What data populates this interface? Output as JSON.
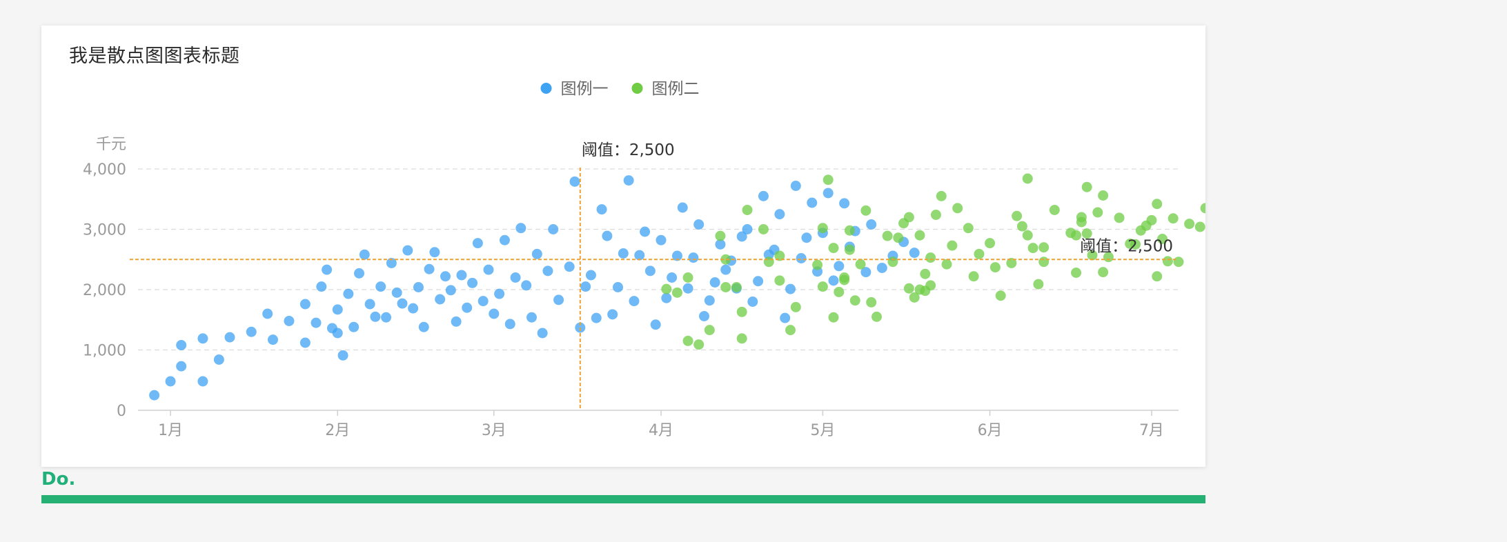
{
  "title": "我是散点图图表标题",
  "footer": {
    "text": "Do."
  },
  "chart_data": {
    "type": "scatter",
    "title": "我是散点图图表标题",
    "y_unit": "千元",
    "ylim": [
      0,
      4000
    ],
    "yticks": [
      0,
      1000,
      2000,
      3000,
      4000
    ],
    "ytick_labels": [
      "0",
      "1,000",
      "2,000",
      "3,000",
      "4,000"
    ],
    "x_type": "date",
    "xlim": [
      "2019-12-27",
      "2020-07-06"
    ],
    "xticks": [
      "2020-01-01",
      "2020-02-01",
      "2020-03-01",
      "2020-04-01",
      "2020-05-01",
      "2020-06-01",
      "2020-07-01"
    ],
    "xtick_labels": [
      "1月",
      "2月",
      "3月",
      "4月",
      "5月",
      "6月",
      "7月"
    ],
    "grid": "horizontal-dashed",
    "legend_position": "top-center",
    "threshold_lines": [
      {
        "orientation": "vertical",
        "value": "2020-03-17",
        "label": "阈值：2,500",
        "label_position": "top"
      },
      {
        "orientation": "horizontal",
        "value": 2500,
        "label": "阈值：2,500",
        "label_position": "right"
      }
    ],
    "series": [
      {
        "name": "图例一",
        "color": "#3fa3f3",
        "points": [
          [
            "2019-12-29",
            250
          ],
          [
            "2020-01-01",
            480
          ],
          [
            "2020-01-03",
            1080
          ],
          [
            "2020-01-03",
            730
          ],
          [
            "2020-01-07",
            1190
          ],
          [
            "2020-01-07",
            480
          ],
          [
            "2020-01-10",
            840
          ],
          [
            "2020-01-12",
            1210
          ],
          [
            "2020-01-16",
            1300
          ],
          [
            "2020-01-19",
            1600
          ],
          [
            "2020-01-20",
            1170
          ],
          [
            "2020-01-23",
            1480
          ],
          [
            "2020-01-26",
            1120
          ],
          [
            "2020-01-26",
            1760
          ],
          [
            "2020-01-28",
            1450
          ],
          [
            "2020-01-29",
            2050
          ],
          [
            "2020-01-30",
            2330
          ],
          [
            "2020-01-31",
            1360
          ],
          [
            "2020-02-01",
            1280
          ],
          [
            "2020-02-01",
            1670
          ],
          [
            "2020-02-02",
            910
          ],
          [
            "2020-02-03",
            1930
          ],
          [
            "2020-02-04",
            1380
          ],
          [
            "2020-02-05",
            2270
          ],
          [
            "2020-02-06",
            2580
          ],
          [
            "2020-02-07",
            1760
          ],
          [
            "2020-02-08",
            1550
          ],
          [
            "2020-02-09",
            2050
          ],
          [
            "2020-02-10",
            1540
          ],
          [
            "2020-02-11",
            2440
          ],
          [
            "2020-02-12",
            1950
          ],
          [
            "2020-02-13",
            1770
          ],
          [
            "2020-02-14",
            2650
          ],
          [
            "2020-02-15",
            1690
          ],
          [
            "2020-02-16",
            2040
          ],
          [
            "2020-02-17",
            1380
          ],
          [
            "2020-02-18",
            2340
          ],
          [
            "2020-02-19",
            2620
          ],
          [
            "2020-02-20",
            1840
          ],
          [
            "2020-02-21",
            2220
          ],
          [
            "2020-02-22",
            1990
          ],
          [
            "2020-02-23",
            1470
          ],
          [
            "2020-02-24",
            2240
          ],
          [
            "2020-02-25",
            1700
          ],
          [
            "2020-02-26",
            2110
          ],
          [
            "2020-02-27",
            2770
          ],
          [
            "2020-02-28",
            1810
          ],
          [
            "2020-02-29",
            2330
          ],
          [
            "2020-03-01",
            1600
          ],
          [
            "2020-03-02",
            1930
          ],
          [
            "2020-03-03",
            2820
          ],
          [
            "2020-03-04",
            1430
          ],
          [
            "2020-03-05",
            2200
          ],
          [
            "2020-03-06",
            3020
          ],
          [
            "2020-03-07",
            2070
          ],
          [
            "2020-03-08",
            1540
          ],
          [
            "2020-03-09",
            2590
          ],
          [
            "2020-03-10",
            1280
          ],
          [
            "2020-03-11",
            2310
          ],
          [
            "2020-03-12",
            3000
          ],
          [
            "2020-03-13",
            1830
          ],
          [
            "2020-03-15",
            2380
          ],
          [
            "2020-03-16",
            3790
          ],
          [
            "2020-03-17",
            1370
          ],
          [
            "2020-03-18",
            2050
          ],
          [
            "2020-03-19",
            2240
          ],
          [
            "2020-03-20",
            1530
          ],
          [
            "2020-03-21",
            3330
          ],
          [
            "2020-03-22",
            2890
          ],
          [
            "2020-03-23",
            1590
          ],
          [
            "2020-03-24",
            2040
          ],
          [
            "2020-03-25",
            2600
          ],
          [
            "2020-03-26",
            3810
          ],
          [
            "2020-03-27",
            1810
          ],
          [
            "2020-03-28",
            2570
          ],
          [
            "2020-03-29",
            2960
          ],
          [
            "2020-03-30",
            2310
          ],
          [
            "2020-03-31",
            1420
          ],
          [
            "2020-04-01",
            2820
          ],
          [
            "2020-04-02",
            1860
          ],
          [
            "2020-04-03",
            2200
          ],
          [
            "2020-04-04",
            2560
          ],
          [
            "2020-04-05",
            3360
          ],
          [
            "2020-04-06",
            2020
          ],
          [
            "2020-04-07",
            2530
          ],
          [
            "2020-04-08",
            3080
          ],
          [
            "2020-04-09",
            1560
          ],
          [
            "2020-04-10",
            1820
          ],
          [
            "2020-04-11",
            2120
          ],
          [
            "2020-04-12",
            2750
          ],
          [
            "2020-04-13",
            2330
          ],
          [
            "2020-04-14",
            2480
          ],
          [
            "2020-04-15",
            2020
          ],
          [
            "2020-04-16",
            2880
          ],
          [
            "2020-04-17",
            3000
          ],
          [
            "2020-04-18",
            1800
          ],
          [
            "2020-04-19",
            2140
          ],
          [
            "2020-04-20",
            3550
          ],
          [
            "2020-04-21",
            2580
          ],
          [
            "2020-04-22",
            2660
          ],
          [
            "2020-04-23",
            3250
          ],
          [
            "2020-04-24",
            1530
          ],
          [
            "2020-04-25",
            2010
          ],
          [
            "2020-04-26",
            3720
          ],
          [
            "2020-04-27",
            2520
          ],
          [
            "2020-04-28",
            2860
          ],
          [
            "2020-04-29",
            3440
          ],
          [
            "2020-04-30",
            2300
          ],
          [
            "2020-05-01",
            2940
          ],
          [
            "2020-05-02",
            3600
          ],
          [
            "2020-05-03",
            2150
          ],
          [
            "2020-05-04",
            2390
          ],
          [
            "2020-05-05",
            3430
          ],
          [
            "2020-05-06",
            2710
          ],
          [
            "2020-05-07",
            2970
          ],
          [
            "2020-05-09",
            2290
          ],
          [
            "2020-05-10",
            3080
          ],
          [
            "2020-05-12",
            2360
          ],
          [
            "2020-05-14",
            2560
          ],
          [
            "2020-05-16",
            2790
          ],
          [
            "2020-05-18",
            2610
          ]
        ]
      },
      {
        "name": "图例二",
        "color": "#6fcc44",
        "points": [
          [
            "2020-04-02",
            2010
          ],
          [
            "2020-04-04",
            1950
          ],
          [
            "2020-04-06",
            2200
          ],
          [
            "2020-04-06",
            1150
          ],
          [
            "2020-04-08",
            1090
          ],
          [
            "2020-04-10",
            1330
          ],
          [
            "2020-04-12",
            2890
          ],
          [
            "2020-04-13",
            2500
          ],
          [
            "2020-04-13",
            2040
          ],
          [
            "2020-04-15",
            2040
          ],
          [
            "2020-04-16",
            1190
          ],
          [
            "2020-04-16",
            1630
          ],
          [
            "2020-04-17",
            3320
          ],
          [
            "2020-04-20",
            3000
          ],
          [
            "2020-04-21",
            2460
          ],
          [
            "2020-04-23",
            2560
          ],
          [
            "2020-04-23",
            2150
          ],
          [
            "2020-04-25",
            1330
          ],
          [
            "2020-04-26",
            1710
          ],
          [
            "2020-04-30",
            2410
          ],
          [
            "2020-05-01",
            3020
          ],
          [
            "2020-05-01",
            2050
          ],
          [
            "2020-05-02",
            3820
          ],
          [
            "2020-05-03",
            1540
          ],
          [
            "2020-05-03",
            2690
          ],
          [
            "2020-05-04",
            1960
          ],
          [
            "2020-05-05",
            2200
          ],
          [
            "2020-05-05",
            2160
          ],
          [
            "2020-05-06",
            2660
          ],
          [
            "2020-05-06",
            2980
          ],
          [
            "2020-05-07",
            1820
          ],
          [
            "2020-05-08",
            2420
          ],
          [
            "2020-05-09",
            3310
          ],
          [
            "2020-05-10",
            1790
          ],
          [
            "2020-05-11",
            1550
          ],
          [
            "2020-05-13",
            2890
          ],
          [
            "2020-05-14",
            2460
          ],
          [
            "2020-05-15",
            2860
          ],
          [
            "2020-05-16",
            3100
          ],
          [
            "2020-05-17",
            3200
          ],
          [
            "2020-05-17",
            2020
          ],
          [
            "2020-05-18",
            1870
          ],
          [
            "2020-05-19",
            2900
          ],
          [
            "2020-05-19",
            2000
          ],
          [
            "2020-05-20",
            2260
          ],
          [
            "2020-05-20",
            1980
          ],
          [
            "2020-05-21",
            2530
          ],
          [
            "2020-05-21",
            2070
          ],
          [
            "2020-05-22",
            3240
          ],
          [
            "2020-05-23",
            3550
          ],
          [
            "2020-05-24",
            2420
          ],
          [
            "2020-05-25",
            2730
          ],
          [
            "2020-05-26",
            3350
          ],
          [
            "2020-05-28",
            3020
          ],
          [
            "2020-05-29",
            2220
          ],
          [
            "2020-05-30",
            2590
          ],
          [
            "2020-06-01",
            2770
          ],
          [
            "2020-06-02",
            2370
          ],
          [
            "2020-06-03",
            1900
          ],
          [
            "2020-06-05",
            2440
          ],
          [
            "2020-06-06",
            3220
          ],
          [
            "2020-06-07",
            3050
          ],
          [
            "2020-06-08",
            3840
          ],
          [
            "2020-06-08",
            2900
          ],
          [
            "2020-06-09",
            2690
          ],
          [
            "2020-06-10",
            2090
          ],
          [
            "2020-06-11",
            2460
          ],
          [
            "2020-06-11",
            2700
          ],
          [
            "2020-06-13",
            3320
          ],
          [
            "2020-06-16",
            2940
          ],
          [
            "2020-06-17",
            2900
          ],
          [
            "2020-06-17",
            2280
          ],
          [
            "2020-06-18",
            3120
          ],
          [
            "2020-06-18",
            3200
          ],
          [
            "2020-06-19",
            2930
          ],
          [
            "2020-06-19",
            3700
          ],
          [
            "2020-06-20",
            2570
          ],
          [
            "2020-06-21",
            3280
          ],
          [
            "2020-06-22",
            3560
          ],
          [
            "2020-06-22",
            2290
          ],
          [
            "2020-06-23",
            2540
          ],
          [
            "2020-06-25",
            3190
          ],
          [
            "2020-06-27",
            2760
          ],
          [
            "2020-06-28",
            2750
          ],
          [
            "2020-06-29",
            2980
          ],
          [
            "2020-06-30",
            3060
          ],
          [
            "2020-07-01",
            3150
          ],
          [
            "2020-07-02",
            2220
          ],
          [
            "2020-07-02",
            3420
          ],
          [
            "2020-07-03",
            2840
          ],
          [
            "2020-07-04",
            2470
          ],
          [
            "2020-07-05",
            3180
          ],
          [
            "2020-07-06",
            2460
          ],
          [
            "2020-07-08",
            3090
          ],
          [
            "2020-07-10",
            3040
          ],
          [
            "2020-07-11",
            3350
          ]
        ]
      }
    ]
  }
}
